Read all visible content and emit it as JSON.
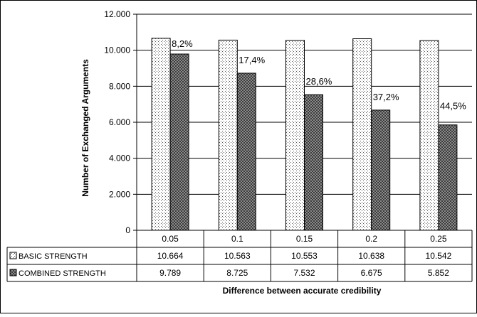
{
  "chart_data": {
    "type": "bar",
    "title": "",
    "xlabel": "Difference between accurate credibility",
    "ylabel": "Number of Exchanged Arguments",
    "categories": [
      "0.05",
      "0.1",
      "0.15",
      "0.2",
      "0.25"
    ],
    "ylim": [
      0,
      12000
    ],
    "y_ticks": [
      {
        "value": 0,
        "label": "0"
      },
      {
        "value": 2000,
        "label": "2.000"
      },
      {
        "value": 4000,
        "label": "4.000"
      },
      {
        "value": 6000,
        "label": "6.000"
      },
      {
        "value": 8000,
        "label": "8.000"
      },
      {
        "value": 10000,
        "label": "10.000"
      },
      {
        "value": 12000,
        "label": "12.000"
      }
    ],
    "grid": true,
    "legend_placement": "data-table",
    "series": [
      {
        "name": "BASIC STRENGTH",
        "pattern": "dotted",
        "values": [
          10664,
          10563,
          10553,
          10638,
          10542
        ],
        "value_labels": [
          "10.664",
          "10.563",
          "10.553",
          "10.638",
          "10.542"
        ]
      },
      {
        "name": "COMBINED STRENGTH",
        "pattern": "crosshatch",
        "values": [
          9789,
          8725,
          7532,
          6675,
          5852
        ],
        "value_labels": [
          "9.789",
          "8.725",
          "7.532",
          "6.675",
          "5.852"
        ]
      }
    ],
    "annotations": [
      "8,2%",
      "17,4%",
      "28,6%",
      "37,2%",
      "44,5%"
    ]
  }
}
